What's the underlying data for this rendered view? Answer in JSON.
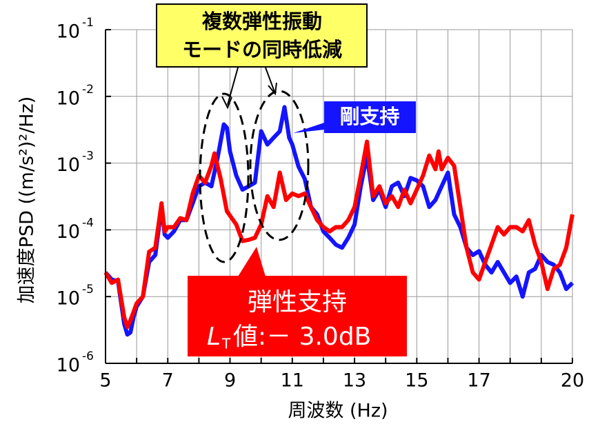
{
  "chart_data": {
    "type": "line",
    "x_label": "周波数 (Hz)",
    "y_label": "加速度PSD ((m/s²)²/Hz)",
    "xlim": [
      5,
      20
    ],
    "xticks": [
      5,
      7,
      9,
      11,
      13,
      15,
      17,
      20
    ],
    "xminor_ticks": [
      6,
      8,
      10,
      12,
      14,
      16,
      18,
      19
    ],
    "ylim": [
      1e-06,
      0.1
    ],
    "log_y": true,
    "grid": true,
    "yticks": [
      {
        "value": 0.1,
        "label": "10",
        "exponent": "-1"
      },
      {
        "value": 0.01,
        "label": "10",
        "exponent": "-2"
      },
      {
        "value": 0.001,
        "label": "10",
        "exponent": "-3"
      },
      {
        "value": 0.0001,
        "label": "10",
        "exponent": "-4"
      },
      {
        "value": 1e-05,
        "label": "10",
        "exponent": "-5"
      },
      {
        "value": 1e-06,
        "label": "10",
        "exponent": "-6"
      }
    ],
    "series": [
      {
        "name": "剛支持",
        "color": "#1414ff",
        "x": [
          5.0,
          5.2,
          5.4,
          5.6,
          5.7,
          5.8,
          5.9,
          6.0,
          6.2,
          6.4,
          6.6,
          6.8,
          6.9,
          7.0,
          7.2,
          7.4,
          7.6,
          7.8,
          8.0,
          8.2,
          8.4,
          8.6,
          8.8,
          8.9,
          9.0,
          9.2,
          9.4,
          9.6,
          9.8,
          10.0,
          10.2,
          10.4,
          10.6,
          10.75,
          10.9,
          11.0,
          11.2,
          11.4,
          11.6,
          11.8,
          12.0,
          12.2,
          12.4,
          12.6,
          12.8,
          13.0,
          13.2,
          13.4,
          13.6,
          13.8,
          14.0,
          14.2,
          14.4,
          14.6,
          14.8,
          15.0,
          15.2,
          15.4,
          15.6,
          15.8,
          16.0,
          16.2,
          16.4,
          16.6,
          16.8,
          17.0,
          17.2,
          17.4,
          17.6,
          17.8,
          18.0,
          18.2,
          18.4,
          18.6,
          18.8,
          19.0,
          19.2,
          19.4,
          19.6,
          19.8,
          20.0
        ],
        "values": [
          2.3e-05,
          1.8e-05,
          1.7e-05,
          3.9e-06,
          2.7e-06,
          2.9e-06,
          4.9e-06,
          7.1e-06,
          1e-05,
          3.3e-05,
          4.2e-05,
          0.00022,
          8.5e-05,
          7.6e-05,
          9.5e-05,
          0.00014,
          0.00014,
          0.00025,
          0.00045,
          0.00051,
          0.00045,
          0.0012,
          0.0038,
          0.0034,
          0.0015,
          0.00065,
          0.0004,
          0.00045,
          0.00051,
          0.003,
          0.0019,
          0.0024,
          0.003,
          0.0069,
          0.0024,
          0.0019,
          0.00089,
          0.00058,
          0.00022,
          0.00017,
          9.5e-05,
          7.6e-05,
          6e-05,
          5.4e-05,
          7.6e-05,
          0.00012,
          0.00045,
          0.0013,
          0.00028,
          0.0004,
          0.00022,
          0.00045,
          0.00051,
          0.00032,
          0.0006,
          0.00055,
          0.00045,
          0.00022,
          0.00028,
          0.00045,
          0.00072,
          0.00017,
          0.00011,
          5.4e-05,
          4.2e-05,
          4.8e-05,
          3e-05,
          2.3e-05,
          3.3e-05,
          2.3e-05,
          1.6e-05,
          2e-05,
          1e-05,
          2.3e-05,
          2.6e-05,
          4.2e-05,
          3.3e-05,
          3e-05,
          2.3e-05,
          1.3e-05,
          1.6e-05
        ]
      },
      {
        "name": "弾性支持",
        "color": "#ff0000",
        "x": [
          5.0,
          5.2,
          5.4,
          5.6,
          5.7,
          5.8,
          6.0,
          6.2,
          6.4,
          6.6,
          6.8,
          6.9,
          7.0,
          7.2,
          7.4,
          7.6,
          7.8,
          8.0,
          8.2,
          8.4,
          8.5,
          8.7,
          8.9,
          9.2,
          9.4,
          9.6,
          9.8,
          10.0,
          10.2,
          10.4,
          10.6,
          10.8,
          11.0,
          11.2,
          11.4,
          11.6,
          11.8,
          12.0,
          12.2,
          12.4,
          12.6,
          12.8,
          13.0,
          13.2,
          13.4,
          13.6,
          13.8,
          14.0,
          14.2,
          14.4,
          14.6,
          14.8,
          15.0,
          15.2,
          15.4,
          15.6,
          15.7,
          15.8,
          16.0,
          16.2,
          16.4,
          16.6,
          16.8,
          17.0,
          17.2,
          17.4,
          17.6,
          17.8,
          18.0,
          18.2,
          18.4,
          18.6,
          18.8,
          19.0,
          19.2,
          19.4,
          19.6,
          19.8,
          20.0
        ],
        "values": [
          2.3e-05,
          1.6e-05,
          1.8e-05,
          4.9e-06,
          3.5e-06,
          4.4e-06,
          7.9e-06,
          1e-05,
          4.7e-05,
          5.4e-05,
          0.00025,
          9.5e-05,
          0.00011,
          0.00011,
          0.00015,
          0.00014,
          0.00035,
          0.00065,
          0.00051,
          0.00091,
          0.0014,
          0.00058,
          0.00019,
          0.00012,
          6.8e-05,
          7.1e-05,
          7.6e-05,
          0.00012,
          0.00032,
          0.00022,
          0.00072,
          0.00028,
          0.00035,
          0.00032,
          0.00035,
          0.00022,
          0.00014,
          0.00011,
          9.5e-05,
          0.00011,
          0.00011,
          0.00014,
          0.00022,
          0.00065,
          0.0021,
          0.00032,
          0.00045,
          0.00025,
          0.00032,
          0.00022,
          0.0004,
          0.00025,
          0.0004,
          0.00065,
          0.0013,
          0.00081,
          0.0015,
          0.00081,
          0.0012,
          0.00091,
          0.00022,
          5.4e-05,
          2.3e-05,
          1.8e-05,
          3.3e-05,
          6e-05,
          0.00011,
          8.5e-05,
          0.00011,
          0.00011,
          9.5e-05,
          0.00014,
          6e-05,
          3.3e-05,
          1.3e-05,
          2.6e-05,
          3e-05,
          5.4e-05,
          0.00017
        ]
      }
    ],
    "annotations": {
      "yellow_box": [
        "複数弾性振動",
        "モードの同時低減"
      ],
      "lt_symbol": "L",
      "lt_subscript": "T",
      "lt_value": "値:－ 3.0dB"
    }
  }
}
